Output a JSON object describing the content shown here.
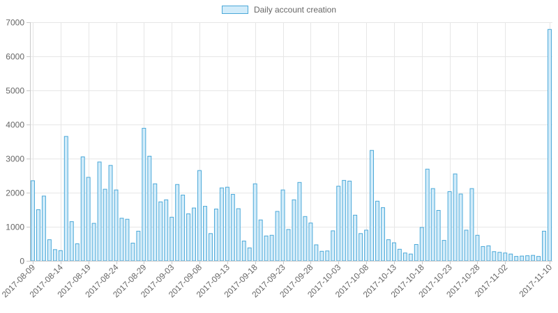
{
  "colors": {
    "bar_fill": "#d2ecfa",
    "bar_stroke": "#4aa8d8",
    "grid": "#e6e6e6",
    "axis": "#c8c8c8",
    "text": "#666666"
  },
  "chart_data": {
    "type": "bar",
    "legend": {
      "label": "Daily account creation",
      "position": "top-center"
    },
    "grid": true,
    "ylim": [
      0,
      7000
    ],
    "y_ticks": [
      0,
      1000,
      2000,
      3000,
      4000,
      5000,
      6000,
      7000
    ],
    "x_tick_labels": [
      "2017-08-09",
      "2017-08-14",
      "2017-08-19",
      "2017-08-24",
      "2017-08-29",
      "2017-09-03",
      "2017-09-08",
      "2017-09-13",
      "2017-09-18",
      "2017-09-23",
      "2017-09-28",
      "2017-10-03",
      "2017-10-08",
      "2017-10-13",
      "2017-10-18",
      "2017-10-23",
      "2017-10-28",
      "2017-11-02",
      "2017-11-10"
    ],
    "start_date": "2017-08-09",
    "series": [
      {
        "name": "Daily account creation",
        "values": [
          2350,
          1500,
          1900,
          620,
          330,
          300,
          3650,
          1150,
          500,
          3050,
          2450,
          1100,
          2900,
          2100,
          2800,
          2080,
          1250,
          1220,
          520,
          870,
          3890,
          3070,
          2260,
          1730,
          1790,
          1280,
          2240,
          1930,
          1380,
          1550,
          2650,
          1600,
          800,
          1520,
          2140,
          2160,
          1950,
          1530,
          580,
          380,
          2260,
          1200,
          730,
          750,
          1450,
          2080,
          920,
          1790,
          2300,
          1300,
          1110,
          470,
          280,
          290,
          880,
          2190,
          2360,
          2340,
          1340,
          800,
          900,
          3240,
          1750,
          1560,
          620,
          530,
          340,
          230,
          200,
          480,
          980,
          2690,
          2120,
          1480,
          600,
          2030,
          2550,
          1960,
          900,
          2120,
          750,
          420,
          440,
          270,
          250,
          230,
          200,
          130,
          140,
          150,
          160,
          130,
          870,
          6790
        ]
      }
    ]
  }
}
